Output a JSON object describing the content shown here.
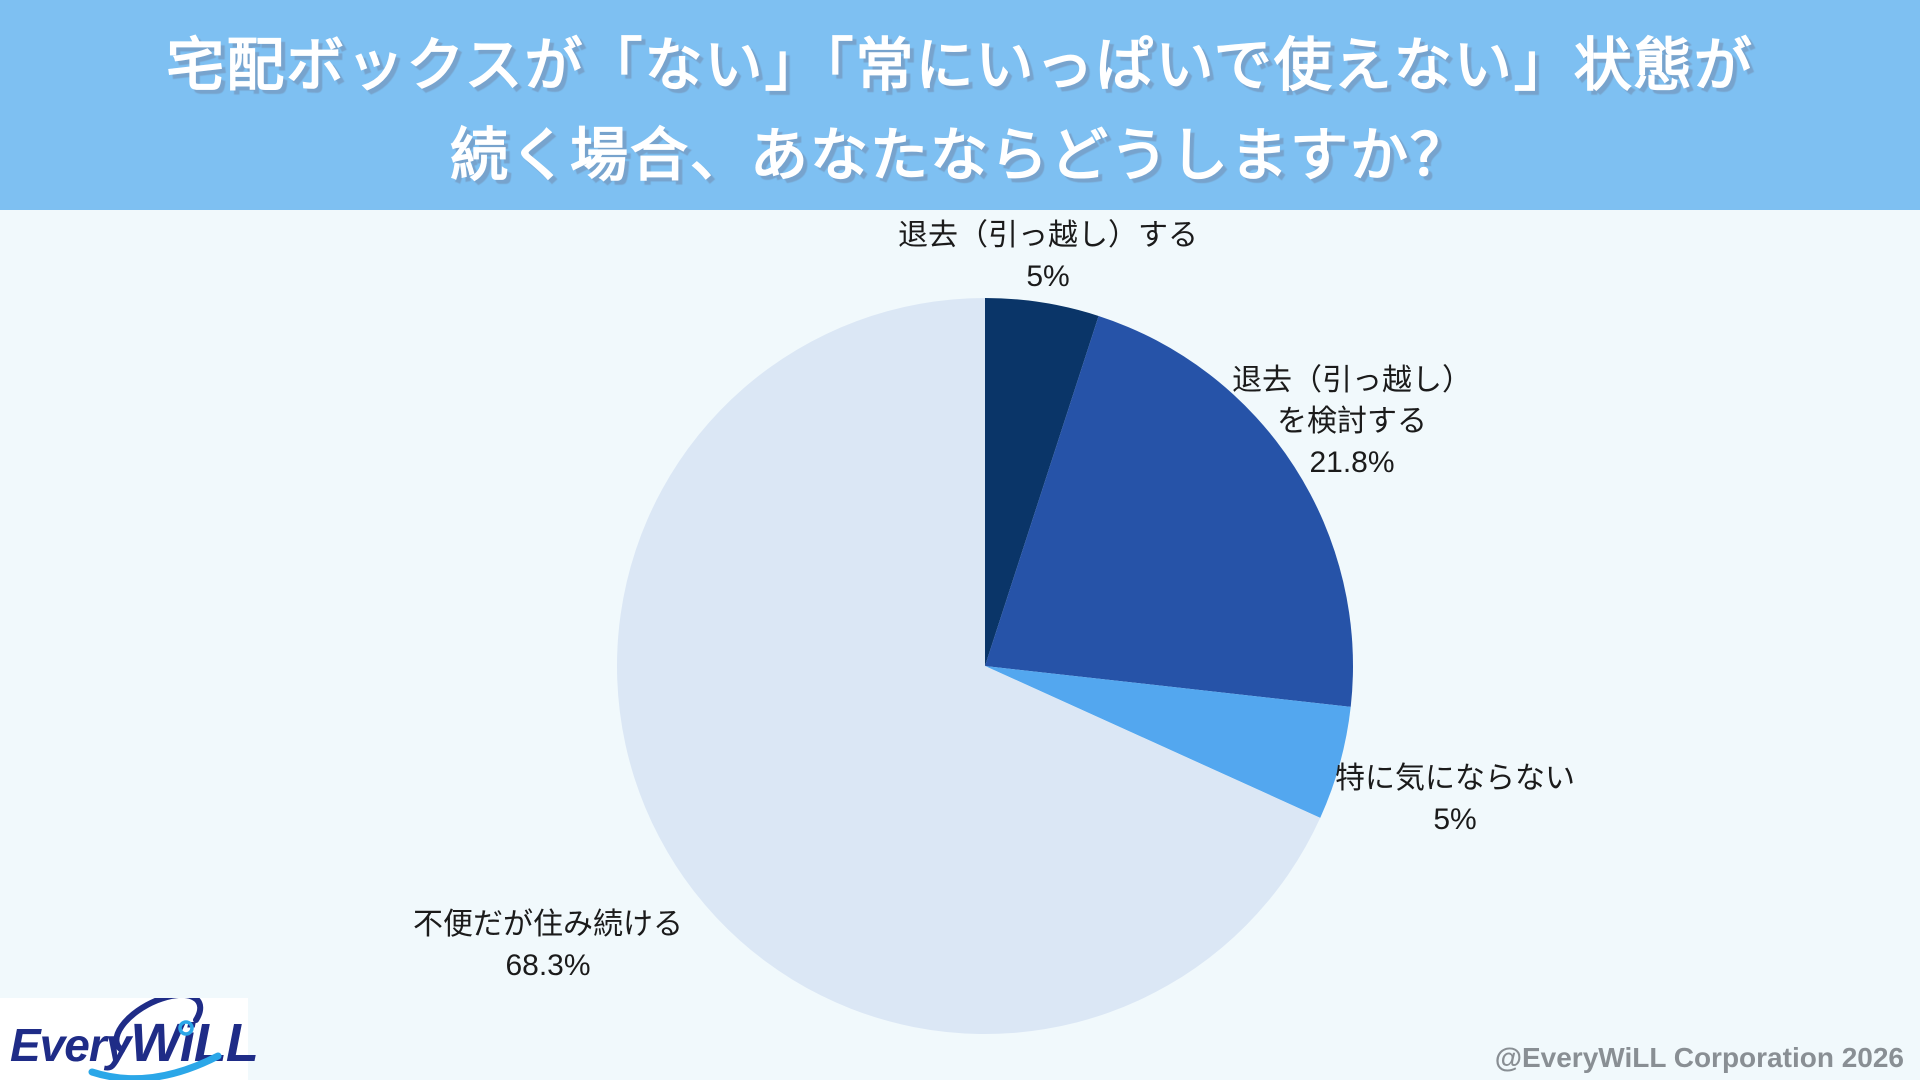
{
  "header": {
    "title_line1": "宅配ボックスが「ない」「常にいっぱいで使えない」状態が",
    "title_line2": "続く場合、あなたならどうしますか？",
    "background_color": "#7ec0f2",
    "text_color": "#ffffff"
  },
  "chart_data": {
    "type": "pie",
    "title": "宅配ボックスが「ない」「常にいっぱいで使えない」状態が続く場合、あなたならどうしますか？",
    "start_angle_deg": 0,
    "direction": "clockwise",
    "legend_position": "none",
    "label_placement": "outside",
    "slices": [
      {
        "label": "退去（引っ越し）する",
        "label_lines": [
          "退去（引っ越し）する"
        ],
        "value": 5,
        "pct_label": "5%",
        "color": "#0a3568"
      },
      {
        "label": "退去（引っ越し）を検討する",
        "label_lines": [
          "退去（引っ越し）",
          "を検討する"
        ],
        "value": 21.8,
        "pct_label": "21.8%",
        "color": "#2653a8"
      },
      {
        "label": "特に気にならない",
        "label_lines": [
          "特に気にならない"
        ],
        "value": 5,
        "pct_label": "5%",
        "color": "#53a7ef"
      },
      {
        "label": "不便だが住み続ける",
        "label_lines": [
          "不便だが住み続ける"
        ],
        "value": 68.3,
        "pct_label": "68.3%",
        "color": "#dbe7f5"
      }
    ]
  },
  "logo": {
    "part1": "Every",
    "part2": "WiLL",
    "navy_color": "#1f2c87",
    "cyan_color": "#2ba7e8"
  },
  "footer": {
    "credit": "@EveryWiLL Corporation 2026"
  }
}
